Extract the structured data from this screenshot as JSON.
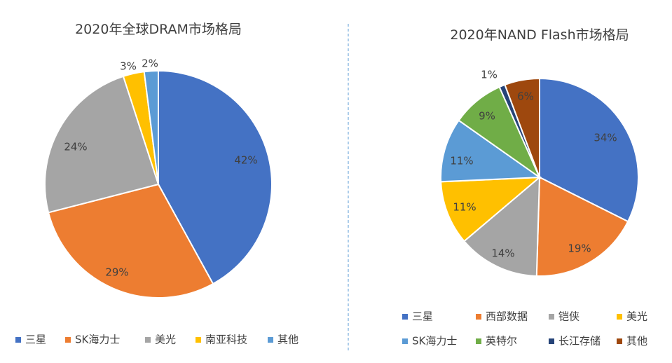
{
  "chart_data": [
    {
      "type": "pie",
      "title": "2020年全球DRAM市场格局",
      "categories": [
        "三星",
        "SK海力士",
        "美光",
        "南亚科技",
        "其他"
      ],
      "values": [
        42,
        29,
        24,
        3,
        2
      ],
      "labels": [
        "42%",
        "29%",
        "24%",
        "3%",
        "2%"
      ],
      "colors": [
        "#4472C4",
        "#ED7D31",
        "#A5A5A5",
        "#FFC000",
        "#5B9BD5"
      ],
      "legend_position": "bottom"
    },
    {
      "type": "pie",
      "title": "2020年NAND Flash市场格局",
      "categories": [
        "三星",
        "西部数据",
        "铠侠",
        "美光",
        "SK海力士",
        "英特尔",
        "长江存储",
        "其他"
      ],
      "values": [
        34,
        19,
        14,
        11,
        11,
        9,
        1,
        6
      ],
      "labels": [
        "34%",
        "19%",
        "14%",
        "11%",
        "11%",
        "9%",
        "1%",
        "6%"
      ],
      "colors": [
        "#4472C4",
        "#ED7D31",
        "#A5A5A5",
        "#FFC000",
        "#5B9BD5",
        "#70AD47",
        "#264478",
        "#9E480E"
      ],
      "legend_position": "bottom"
    }
  ],
  "divider_color": "#5B9BD5"
}
